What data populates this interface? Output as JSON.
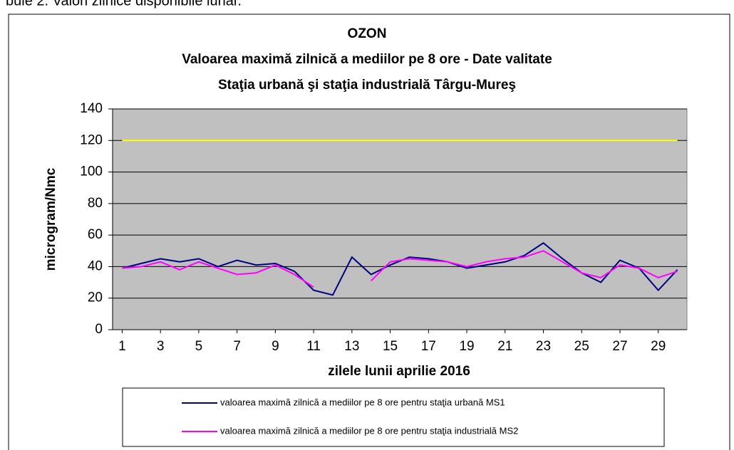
{
  "caption": "bule 2. Valori zilnice disponibile lunar.",
  "chart_data": {
    "type": "line",
    "title": "OZON",
    "subtitle": "Valoarea maximă zilnică a mediilor pe 8 ore - Date valitate",
    "subtitle2": "Staţia urbană şi staţia industrială Târgu-Mureş",
    "x_label": "zilele lunii aprilie 2016",
    "y_label": "microgram/Nmc",
    "x": [
      1,
      2,
      3,
      4,
      5,
      6,
      7,
      8,
      9,
      10,
      11,
      12,
      13,
      14,
      15,
      16,
      17,
      18,
      19,
      20,
      21,
      22,
      23,
      24,
      25,
      26,
      27,
      28,
      29,
      30
    ],
    "xlim": [
      0.5,
      30.5
    ],
    "xticks": [
      1,
      3,
      5,
      7,
      9,
      11,
      13,
      15,
      17,
      19,
      21,
      23,
      25,
      27,
      29
    ],
    "ylim": [
      0,
      140
    ],
    "yticks": [
      0,
      20,
      40,
      60,
      80,
      100,
      120,
      140
    ],
    "grid": true,
    "background": "#c0c0c0",
    "threshold": 120,
    "threshold_color": "#ffff00",
    "series": [
      {
        "name": "valoarea maximă zilnică a mediilor pe 8 ore pentru staţia urbană MS1",
        "color": "#000080",
        "values": [
          39,
          42,
          45,
          43,
          45,
          40,
          44,
          41,
          42,
          37,
          25,
          22,
          46,
          35,
          41,
          46,
          45,
          43,
          39,
          41,
          43,
          47,
          55,
          45,
          36,
          30,
          44,
          39,
          25,
          38
        ]
      },
      {
        "name": "valoarea maximă zilnică a mediilor pe 8 ore pentru staţia industrială MS2",
        "color": "#ff00ff",
        "values": [
          39,
          40,
          43,
          38,
          43,
          39,
          35,
          36,
          41,
          35,
          27,
          null,
          null,
          31,
          43,
          45,
          44,
          43,
          40,
          43,
          45,
          46,
          50,
          43,
          36,
          33,
          41,
          39,
          33,
          37
        ]
      }
    ]
  }
}
